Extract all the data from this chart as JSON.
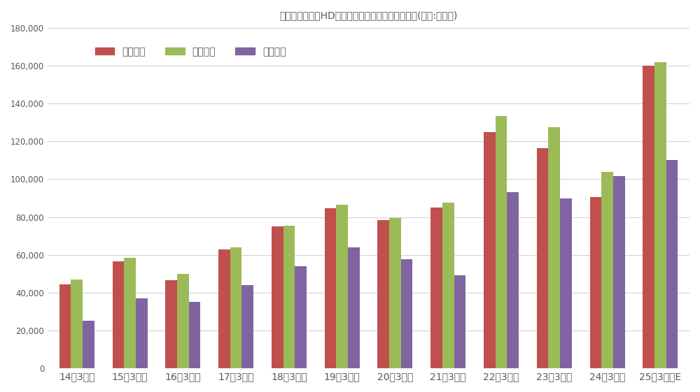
{
  "title": "バンダイナムコHDの営業・経常・最終利益の推移(単位:百万円)",
  "categories": [
    "14年3月期",
    "15年3月期",
    "16年3月期",
    "17年3月期",
    "18年3月期",
    "19年3月期",
    "20年3月期",
    "21年3月期",
    "22年3月期",
    "23年3月期",
    "24年3月期",
    "25年3月期E"
  ],
  "series": [
    {
      "name": "営業利益",
      "color": "#C0504D",
      "values": [
        44500,
        56500,
        46500,
        63000,
        75000,
        84500,
        78500,
        85000,
        125000,
        116500,
        90500,
        160000
      ]
    },
    {
      "name": "経常利益",
      "color": "#9BBB59",
      "values": [
        47000,
        58500,
        50000,
        64000,
        75500,
        86500,
        79500,
        87500,
        133500,
        127500,
        104000,
        162000
      ]
    },
    {
      "name": "最終利益",
      "color": "#8064A2",
      "values": [
        25000,
        37000,
        35000,
        44000,
        54000,
        64000,
        57500,
        49000,
        93000,
        90000,
        101500,
        110000
      ]
    }
  ],
  "ylim": [
    0,
    180000
  ],
  "ytick_interval": 20000,
  "background_color": "#FFFFFF",
  "plot_bg_color": "#FFFFFF",
  "grid_color": "#D3D3D3",
  "title_fontsize": 12,
  "legend_fontsize": 9,
  "tick_fontsize": 8.5,
  "bar_width": 0.22,
  "title_color": "#595959",
  "tick_color": "#595959",
  "legend_text_color": "#595959"
}
